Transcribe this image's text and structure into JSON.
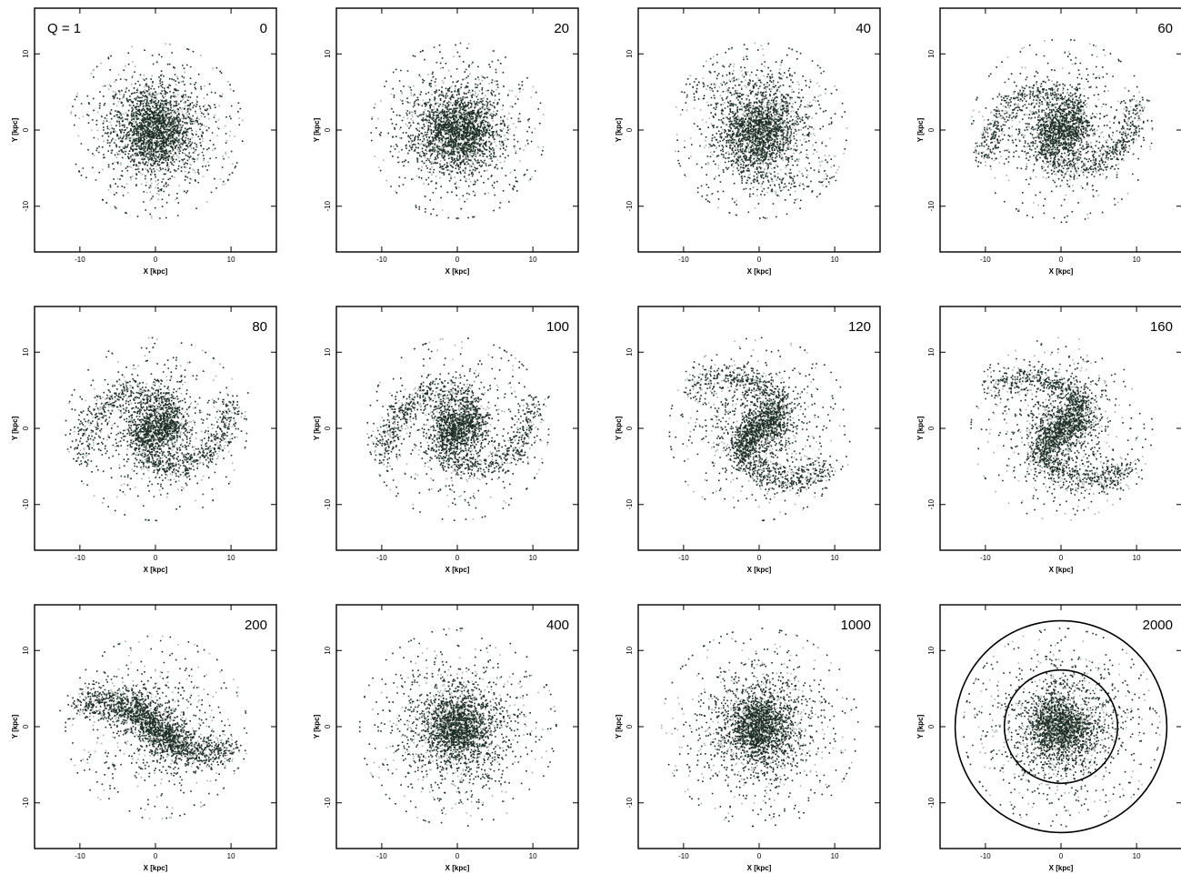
{
  "figure": {
    "q_label": "Q = 1",
    "xlabel": "X [kpc]",
    "ylabel": "Y [kpc]",
    "xticks": [
      "-10",
      "0",
      "10"
    ],
    "yticks": [
      "10",
      "0",
      "-10"
    ]
  },
  "chart_data": [
    {
      "type": "scatter",
      "panel_label": "0",
      "morphology": "axisymmetric-disk",
      "xlabel": "X [kpc]",
      "ylabel": "Y [kpc]",
      "xlim": [
        -16,
        16
      ],
      "ylim": [
        -16,
        16
      ],
      "grid": false
    },
    {
      "type": "scatter",
      "panel_label": "20",
      "morphology": "axisymmetric-disk",
      "xlabel": "X [kpc]",
      "ylabel": "Y [kpc]",
      "xlim": [
        -16,
        16
      ],
      "ylim": [
        -16,
        16
      ],
      "grid": false
    },
    {
      "type": "scatter",
      "panel_label": "40",
      "morphology": "weak-spiral",
      "xlabel": "X [kpc]",
      "ylabel": "Y [kpc]",
      "xlim": [
        -16,
        16
      ],
      "ylim": [
        -16,
        16
      ],
      "grid": false
    },
    {
      "type": "scatter",
      "panel_label": "60",
      "morphology": "spiral",
      "xlabel": "X [kpc]",
      "ylabel": "Y [kpc]",
      "xlim": [
        -16,
        16
      ],
      "ylim": [
        -16,
        16
      ],
      "grid": false
    },
    {
      "type": "scatter",
      "panel_label": "80",
      "morphology": "spiral",
      "xlabel": "X [kpc]",
      "ylabel": "Y [kpc]",
      "xlim": [
        -16,
        16
      ],
      "ylim": [
        -16,
        16
      ],
      "grid": false
    },
    {
      "type": "scatter",
      "panel_label": "100",
      "morphology": "spiral",
      "xlabel": "X [kpc]",
      "ylabel": "Y [kpc]",
      "xlim": [
        -16,
        16
      ],
      "ylim": [
        -16,
        16
      ],
      "grid": false
    },
    {
      "type": "scatter",
      "panel_label": "120",
      "morphology": "barred-spiral",
      "xlabel": "X [kpc]",
      "ylabel": "Y [kpc]",
      "xlim": [
        -16,
        16
      ],
      "ylim": [
        -16,
        16
      ],
      "grid": false
    },
    {
      "type": "scatter",
      "panel_label": "160",
      "morphology": "barred-spiral",
      "xlabel": "X [kpc]",
      "ylabel": "Y [kpc]",
      "xlim": [
        -16,
        16
      ],
      "ylim": [
        -16,
        16
      ],
      "grid": false
    },
    {
      "type": "scatter",
      "panel_label": "200",
      "morphology": "bar-with-ring",
      "xlabel": "X [kpc]",
      "ylabel": "Y [kpc]",
      "xlim": [
        -16,
        16
      ],
      "ylim": [
        -16,
        16
      ],
      "grid": false
    },
    {
      "type": "scatter",
      "panel_label": "400",
      "morphology": "hot-disk",
      "xlabel": "X [kpc]",
      "ylabel": "Y [kpc]",
      "xlim": [
        -16,
        16
      ],
      "ylim": [
        -16,
        16
      ],
      "grid": false
    },
    {
      "type": "scatter",
      "panel_label": "1000",
      "morphology": "hot-disk",
      "xlabel": "X [kpc]",
      "ylabel": "Y [kpc]",
      "xlim": [
        -16,
        16
      ],
      "ylim": [
        -16,
        16
      ],
      "grid": false
    },
    {
      "type": "scatter",
      "panel_label": "2000",
      "morphology": "hot-disk",
      "xlabel": "X [kpc]",
      "ylabel": "Y [kpc]",
      "xlim": [
        -16,
        16
      ],
      "ylim": [
        -16,
        16
      ],
      "grid": false,
      "circle_radii": [
        7.5,
        14
      ]
    }
  ],
  "colors": {
    "particle_dark": "#1f2f28",
    "particle_core": "#2d4a3c",
    "particle_light": "#a9b3ad",
    "axis": "#000000",
    "background": "#ffffff"
  }
}
